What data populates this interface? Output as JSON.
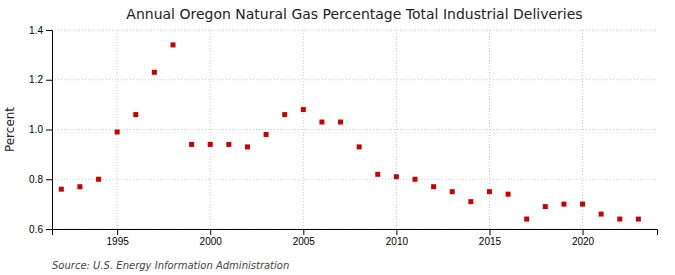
{
  "chart_data": {
    "type": "scatter",
    "title": "Annual Oregon Natural Gas Percentage Total Industrial Deliveries",
    "y_label": "Percent",
    "annotations": [
      "Source: U.S. Energy Information Administration"
    ],
    "x": [
      1992,
      1993,
      1994,
      1995,
      1996,
      1997,
      1998,
      1999,
      2000,
      2001,
      2002,
      2003,
      2004,
      2005,
      2006,
      2007,
      2008,
      2009,
      2010,
      2011,
      2012,
      2013,
      2014,
      2015,
      2016,
      2017,
      2018,
      2019,
      2020,
      2021,
      2022,
      2023
    ],
    "values": [
      0.76,
      0.77,
      0.8,
      0.99,
      1.06,
      1.23,
      1.34,
      0.94,
      0.94,
      0.94,
      0.93,
      0.98,
      1.06,
      1.08,
      1.03,
      1.03,
      0.93,
      0.82,
      0.81,
      0.8,
      0.77,
      0.75,
      0.71,
      0.75,
      0.74,
      0.64,
      0.69,
      0.7,
      0.7,
      0.66,
      0.64,
      0.64
    ],
    "color": "#cc0000",
    "marker": "square",
    "xlim": [
      1991.5,
      2024
    ],
    "xticks": [
      1995,
      2000,
      2005,
      2010,
      2015,
      2020
    ],
    "ylim": [
      0.6,
      1.4
    ],
    "yticks": [
      0.6,
      0.8,
      {
        "value": 1.0,
        "label": "1.0"
      },
      1.2,
      1.4
    ],
    "grid": true
  }
}
